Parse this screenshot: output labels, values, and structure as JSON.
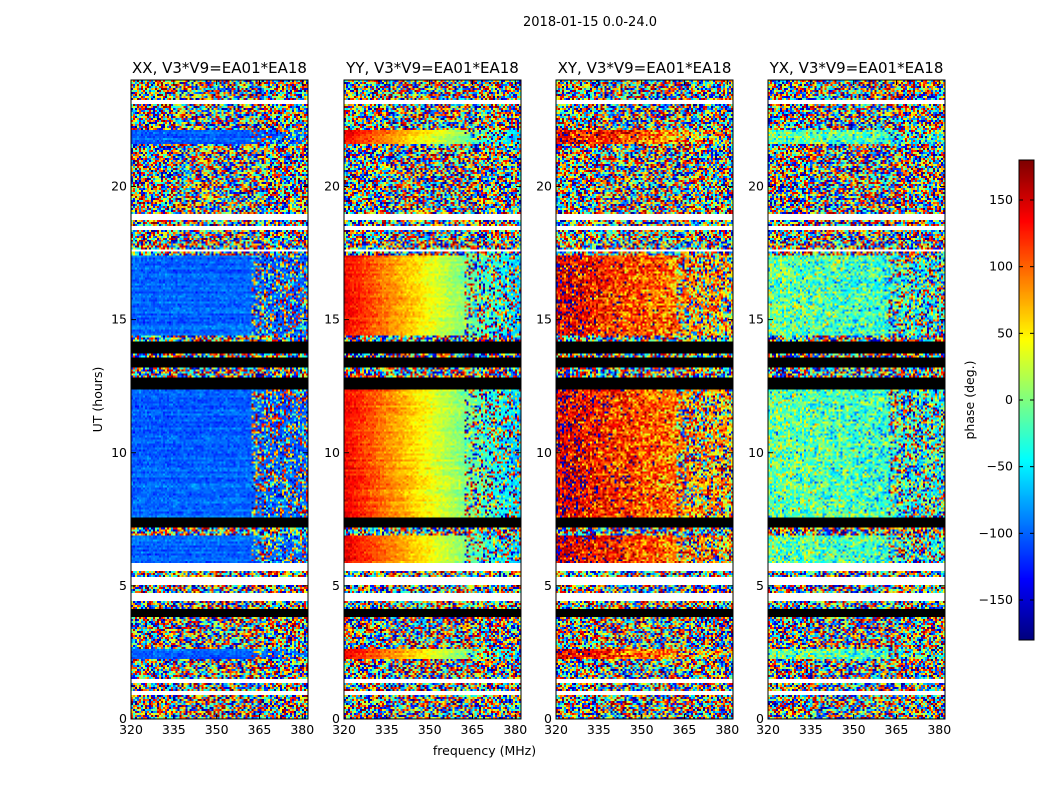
{
  "figure_title": "2018-01-15 0.0-24.0",
  "chart_data": [
    {
      "type": "heatmap",
      "title": "XX, V3*V9=EA01*EA18",
      "xlabel": "",
      "ylabel": "UT (hours)",
      "xlim": [
        320,
        382
      ],
      "ylim": [
        0,
        24
      ],
      "xticks": [
        "320",
        "335",
        "350",
        "365",
        "380"
      ],
      "yticks": [
        "0",
        "5",
        "10",
        "15",
        "20"
      ],
      "coherent_phase_deg": -100,
      "coherent_phase_slope_deg_per_mhz": 0
    },
    {
      "type": "heatmap",
      "title": "YY, V3*V9=EA01*EA18",
      "xlabel": "frequency (MHz)",
      "ylabel": "",
      "xlim": [
        320,
        382
      ],
      "ylim": [
        0,
        24
      ],
      "xticks": [
        "320",
        "335",
        "350",
        "365",
        "380"
      ],
      "yticks": [
        "0",
        "5",
        "10",
        "15",
        "20"
      ],
      "coherent_phase_deg": 90,
      "coherent_phase_slope_deg_per_mhz": -3.3
    },
    {
      "type": "heatmap",
      "title": "XY, V3*V9=EA01*EA18",
      "xlabel": "",
      "ylabel": "",
      "xlim": [
        320,
        382
      ],
      "ylim": [
        0,
        24
      ],
      "xticks": [
        "320",
        "335",
        "350",
        "365",
        "380"
      ],
      "yticks": [
        "0",
        "5",
        "10",
        "15",
        "20"
      ],
      "coherent_phase_deg": 130,
      "coherent_phase_slope_deg_per_mhz": -1.5
    },
    {
      "type": "heatmap",
      "title": "YX, V3*V9=EA01*EA18",
      "xlabel": "",
      "ylabel": "",
      "xlim": [
        320,
        382
      ],
      "ylim": [
        0,
        24
      ],
      "xticks": [
        "320",
        "335",
        "350",
        "365",
        "380"
      ],
      "yticks": [
        "0",
        "5",
        "10",
        "15",
        "20"
      ],
      "coherent_phase_deg": -15,
      "coherent_phase_slope_deg_per_mhz": -0.5
    }
  ],
  "colorbar": {
    "label": "phase (deg.)",
    "colormap": "jet",
    "range": [
      -180,
      180
    ],
    "ticks": [
      "150",
      "100",
      "50",
      "0",
      "−50",
      "−100",
      "−150"
    ]
  },
  "time_structure": {
    "blank_bands_hours": [
      [
        0.9,
        1.05
      ],
      [
        1.35,
        1.5
      ],
      [
        4.45,
        4.7
      ],
      [
        5.05,
        5.3
      ],
      [
        5.55,
        5.85
      ],
      [
        17.55,
        17.65
      ],
      [
        18.35,
        18.5
      ],
      [
        18.75,
        18.95
      ],
      [
        23.1,
        23.25
      ]
    ],
    "flagged_black_bands_hours": [
      [
        3.85,
        4.15
      ],
      [
        7.2,
        7.55
      ],
      [
        12.4,
        12.85
      ],
      [
        13.2,
        13.6
      ],
      [
        13.75,
        14.15
      ]
    ],
    "coherent_intervals_hours": [
      [
        2.25,
        2.65
      ],
      [
        5.85,
        6.9
      ],
      [
        7.55,
        12.4
      ],
      [
        14.4,
        17.4
      ],
      [
        21.6,
        22.1
      ]
    ]
  },
  "colors": {
    "frame": "#000000",
    "blank": "#ffffff",
    "flagged": "#000000"
  }
}
